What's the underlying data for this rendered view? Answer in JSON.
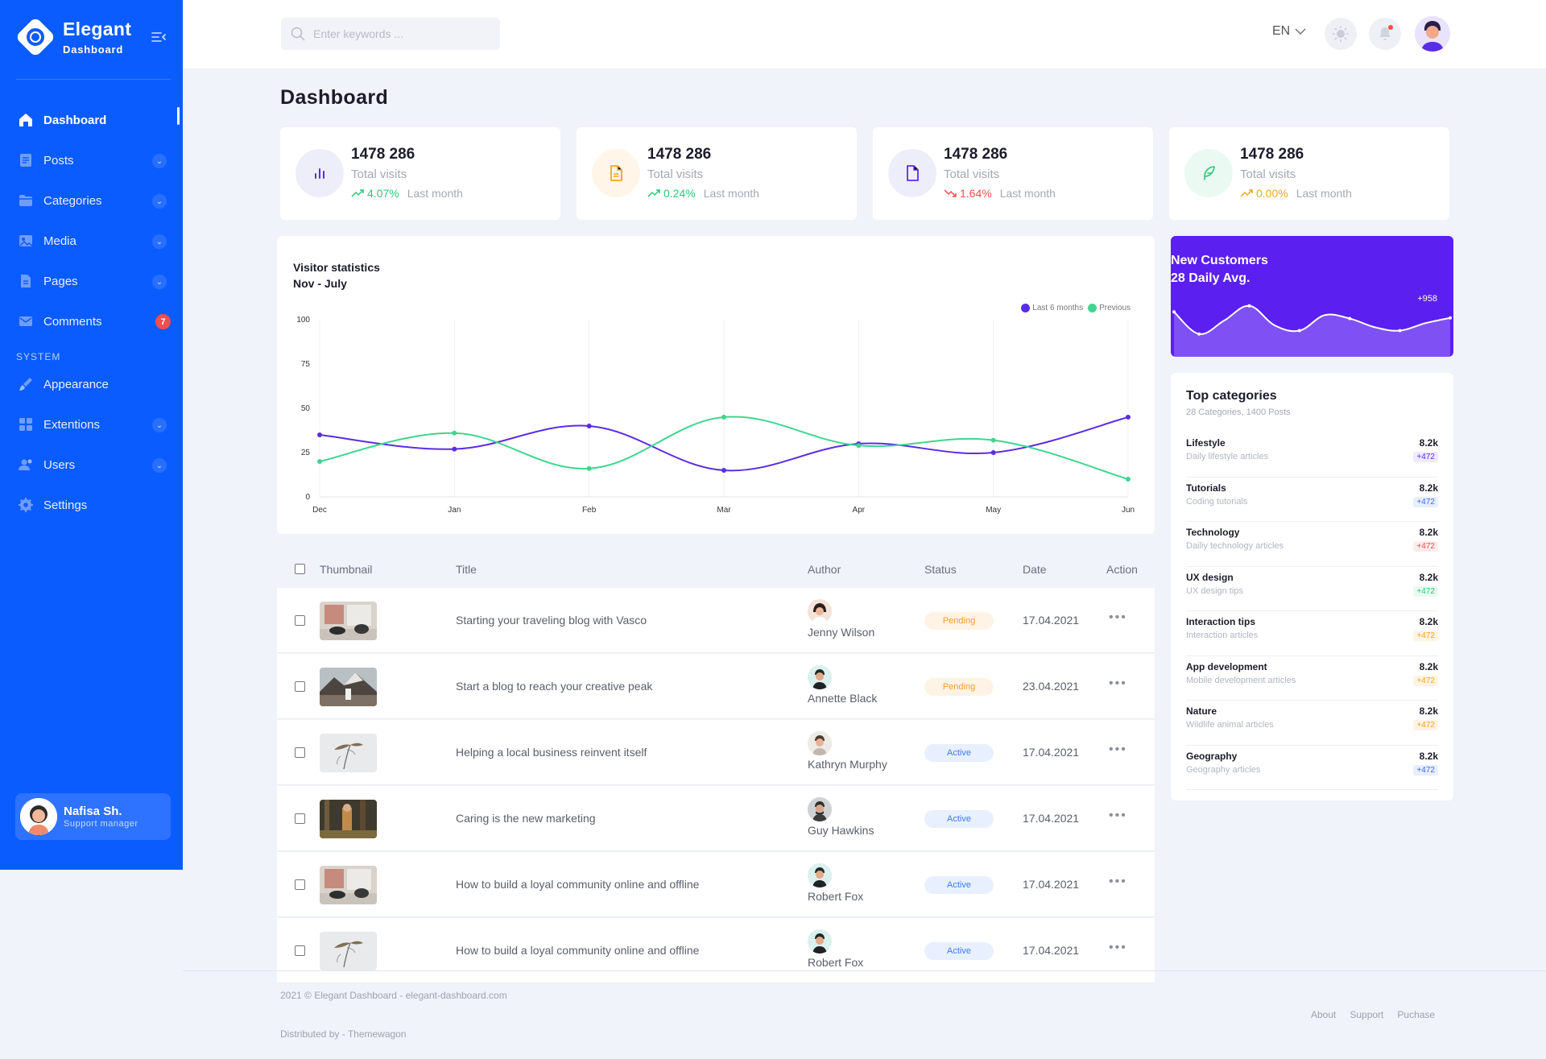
{
  "sidebar": {
    "brand_name": "Elegant",
    "brand_sub": "Dashboard",
    "items": [
      {
        "label": "Dashboard",
        "icon": "home-icon"
      },
      {
        "label": "Posts",
        "icon": "posts-icon"
      },
      {
        "label": "Categories",
        "icon": "folder-icon"
      },
      {
        "label": "Media",
        "icon": "image-icon"
      },
      {
        "label": "Pages",
        "icon": "page-icon"
      },
      {
        "label": "Comments",
        "icon": "mail-icon",
        "badge": "7"
      }
    ],
    "section_label": "SYSTEM",
    "system_items": [
      {
        "label": "Appearance",
        "icon": "brush-icon"
      },
      {
        "label": "Extentions",
        "icon": "grid-icon"
      },
      {
        "label": "Users",
        "icon": "users-icon"
      },
      {
        "label": "Settings",
        "icon": "gear-icon"
      }
    ],
    "user": {
      "name": "Nafisa Sh.",
      "role": "Support manager"
    }
  },
  "topbar": {
    "search_placeholder": "Enter keywords ...",
    "lang": "EN"
  },
  "page_title": "Dashboard",
  "stats": [
    {
      "value": "1478 286",
      "label": "Total visits",
      "pct": "4.07%",
      "period": "Last month",
      "trend": "up",
      "color": "#2fc57a"
    },
    {
      "value": "1478 286",
      "label": "Total visits",
      "pct": "0.24%",
      "period": "Last month",
      "trend": "up",
      "color": "#2fc57a"
    },
    {
      "value": "1478 286",
      "label": "Total visits",
      "pct": "1.64%",
      "period": "Last month",
      "trend": "down",
      "color": "#f44e4e"
    },
    {
      "value": "1478 286",
      "label": "Total visits",
      "pct": "0.00%",
      "period": "Last month",
      "trend": "up",
      "color": "#f5a623"
    }
  ],
  "visitor_chart": {
    "title": "Visitor statistics",
    "subtitle": "Nov - July",
    "legend": [
      "Last 6 months",
      "Previous"
    ]
  },
  "chart_data": [
    {
      "type": "line",
      "title": "Visitor statistics",
      "subtitle": "Nov - July",
      "categories": [
        "Dec",
        "Jan",
        "Feb",
        "Mar",
        "Apr",
        "May",
        "Jun"
      ],
      "ylim": [
        0,
        100
      ],
      "yticks": [
        0,
        25,
        50,
        75,
        100
      ],
      "grid": "vertical",
      "legend_position": "top-right",
      "series": [
        {
          "name": "Last 6 months",
          "color": "#5b2ce6",
          "values": [
            35,
            27,
            40,
            15,
            30,
            25,
            45
          ]
        },
        {
          "name": "Previous",
          "color": "#3ed68f",
          "values": [
            20,
            36,
            16,
            45,
            29,
            32,
            10
          ]
        }
      ]
    },
    {
      "type": "area",
      "title": "New Customers",
      "subtitle": "28 Daily Avg.",
      "annotation": "+958",
      "values": [
        55,
        22,
        42,
        64,
        35,
        27,
        50,
        45,
        32,
        27,
        38,
        46
      ]
    }
  ],
  "new_customers": {
    "title": "New Customers",
    "subtitle": "28 Daily Avg.",
    "annotation": "+958"
  },
  "top_categories": {
    "title": "Top categories",
    "subtitle": "28 Categories, 1400 Posts",
    "items": [
      {
        "name": "Lifestyle",
        "desc": "Daily lifestyle articles",
        "value": "8.2k",
        "delta": "+472",
        "tone": "purple"
      },
      {
        "name": "Tutorials",
        "desc": "Coding tutorials",
        "value": "8.2k",
        "delta": "+472",
        "tone": "blue"
      },
      {
        "name": "Technology",
        "desc": "Dailiy technology articles",
        "value": "8.2k",
        "delta": "+472",
        "tone": "red"
      },
      {
        "name": "UX design",
        "desc": "UX design tips",
        "value": "8.2k",
        "delta": "+472",
        "tone": "green"
      },
      {
        "name": "Interaction tips",
        "desc": "Interaction articles",
        "value": "8.2k",
        "delta": "+472",
        "tone": "orange"
      },
      {
        "name": "App development",
        "desc": "Mobile development articles",
        "value": "8.2k",
        "delta": "+472",
        "tone": "orange"
      },
      {
        "name": "Nature",
        "desc": "Wildlife animal articles",
        "value": "8.2k",
        "delta": "+472",
        "tone": "orange"
      },
      {
        "name": "Geography",
        "desc": "Geography articles",
        "value": "8.2k",
        "delta": "+472",
        "tone": "blue"
      }
    ]
  },
  "table": {
    "headers": [
      "Thumbnail",
      "Title",
      "Author",
      "Status",
      "Date",
      "Action"
    ],
    "rows": [
      {
        "title": "Starting your traveling blog with Vasco",
        "author": "Jenny Wilson",
        "status": "Pending",
        "date": "17.04.2021",
        "thumb": "living-room",
        "av": "a1"
      },
      {
        "title": "Start a blog to reach your creative peak",
        "author": "Annette Black",
        "status": "Pending",
        "date": "23.04.2021",
        "thumb": "mountain",
        "av": "a2"
      },
      {
        "title": "Helping a local business reinvent itself",
        "author": "Kathryn Murphy",
        "status": "Active",
        "date": "17.04.2021",
        "thumb": "plant",
        "av": "a3"
      },
      {
        "title": "Caring is the new marketing",
        "author": "Guy Hawkins",
        "status": "Active",
        "date": "17.04.2021",
        "thumb": "forest",
        "av": "a4"
      },
      {
        "title": "How to build a loyal community online and offline",
        "author": "Robert Fox",
        "status": "Active",
        "date": "17.04.2021",
        "thumb": "living-room",
        "av": "a2"
      },
      {
        "title": "How to build a loyal community online and offline",
        "author": "Robert Fox",
        "status": "Active",
        "date": "17.04.2021",
        "thumb": "plant",
        "av": "a2"
      }
    ],
    "action_label": "•••"
  },
  "footer": {
    "copyright": "2021 © Elegant Dashboard - elegant-dashboard.com",
    "distributed": "Distributed by - Themewagon",
    "links": [
      "About",
      "Support",
      "Puchase"
    ]
  }
}
